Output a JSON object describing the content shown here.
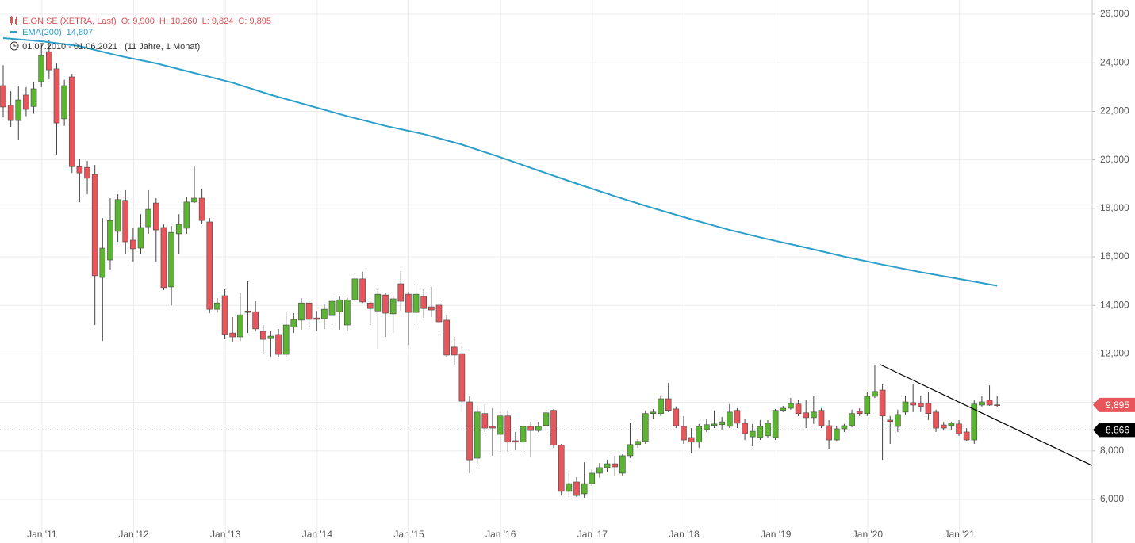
{
  "chart_data": {
    "type": "candlestick",
    "title": "E.ON SE (XETRA, Last)",
    "ohlc_labels": [
      "O: 9,900",
      "H: 10,260",
      "L: 9,824",
      "C: 9,895"
    ],
    "period": "01.07.2010 - 01.06.2021",
    "duration": "(11 Jahre, 1 Monat)",
    "up_color": "#5cb531",
    "down_color": "#e8555a",
    "categories": [
      null,
      null,
      null,
      null,
      null,
      null,
      "Jan '11",
      null,
      null,
      null,
      null,
      null,
      null,
      null,
      null,
      null,
      null,
      null,
      "Jan '12",
      null,
      null,
      null,
      null,
      null,
      null,
      null,
      null,
      null,
      null,
      null,
      "Jan '13",
      null,
      null,
      null,
      null,
      null,
      null,
      null,
      null,
      null,
      null,
      null,
      "Jan '14",
      null,
      null,
      null,
      null,
      null,
      null,
      null,
      null,
      null,
      null,
      null,
      "Jan '15",
      null,
      null,
      null,
      null,
      null,
      null,
      null,
      null,
      null,
      null,
      null,
      "Jan '16",
      null,
      null,
      null,
      null,
      null,
      null,
      null,
      null,
      null,
      null,
      null,
      "Jan '17",
      null,
      null,
      null,
      null,
      null,
      null,
      null,
      null,
      null,
      null,
      null,
      "Jan '18",
      null,
      null,
      null,
      null,
      null,
      null,
      null,
      null,
      null,
      null,
      null,
      "Jan '19",
      null,
      null,
      null,
      null,
      null,
      null,
      null,
      null,
      null,
      null,
      null,
      "Jan '20",
      null,
      null,
      null,
      null,
      null,
      null,
      null,
      null,
      null,
      null,
      null,
      "Jan '21",
      null,
      null,
      null,
      null
    ],
    "open": [
      23060,
      22250,
      21620,
      22670,
      22200,
      23220,
      24460,
      23750,
      21690,
      23420,
      19720,
      19690,
      19400,
      15150,
      15870,
      17050,
      18330,
      16690,
      16360,
      17240,
      18220,
      17210,
      14760,
      16950,
      17180,
      18260,
      18420,
      17440,
      13840,
      14400,
      12860,
      12700,
      13770,
      13740,
      12930,
      12630,
      12800,
      11980,
      13100,
      13390,
      14100,
      13480,
      13450,
      13580,
      13740,
      13190,
      14230,
      15090,
      14100,
      13770,
      14430,
      13650,
      14890,
      14460,
      13710,
      14370,
      13940,
      14010,
      13390,
      12280,
      12010,
      10020,
      7700,
      9540,
      9010,
      8680,
      9440,
      8420,
      8360,
      9010,
      8840,
      9050,
      9670,
      8230,
      6330,
      6720,
      6230,
      6650,
      7080,
      7310,
      7470,
      7080,
      7800,
      8260,
      8390,
      9540,
      9540,
      10150,
      9730,
      9010,
      8550,
      8360,
      8880,
      9050,
      9080,
      9010,
      9670,
      9140,
      8580,
      8550,
      8620,
      8550,
      9670,
      9760,
      9930,
      9570,
      9370,
      9670,
      9040,
      8450,
      8910,
      9040,
      9630,
      9540,
      10250,
      10510,
      9270,
      9010,
      9600,
      9990,
      9960,
      9960,
      9600,
      9070,
      9040,
      9110,
      8780,
      8450,
      9890,
      10090,
      9900
    ],
    "high": [
      23900,
      22830,
      23060,
      23000,
      23200,
      24790,
      24950,
      23970,
      23300,
      23550,
      20050,
      19950,
      19790,
      17600,
      18420,
      18580,
      18750,
      17180,
      17760,
      18750,
      18420,
      17340,
      17270,
      17760,
      18480,
      19730,
      18810,
      17600,
      14300,
      14660,
      13520,
      14500,
      14990,
      14170,
      13190,
      12930,
      13030,
      13740,
      13680,
      14300,
      14240,
      13770,
      14070,
      14330,
      14400,
      14330,
      15310,
      15380,
      14170,
      14660,
      14500,
      14400,
      15410,
      14560,
      14890,
      14660,
      14760,
      14170,
      13580,
      12700,
      12370,
      10250,
      9860,
      9930,
      9760,
      9600,
      9670,
      8780,
      9330,
      9200,
      9200,
      9700,
      9730,
      8290,
      7140,
      6920,
      7530,
      7240,
      7500,
      7630,
      7800,
      7860,
      9170,
      8490,
      9670,
      9730,
      10250,
      10800,
      9830,
      9430,
      8940,
      9110,
      9330,
      9670,
      9400,
      9930,
      9760,
      9330,
      9110,
      9270,
      9270,
      9730,
      9860,
      10180,
      10090,
      10090,
      10250,
      9760,
      9270,
      9010,
      9110,
      9700,
      9760,
      10410,
      11560,
      10740,
      9440,
      9700,
      10250,
      10740,
      10250,
      10410,
      9700,
      9200,
      9200,
      9270,
      8940,
      10090,
      10250,
      10700,
      10260
    ],
    "low": [
      21750,
      21360,
      20840,
      21800,
      21900,
      23000,
      23320,
      20220,
      21400,
      19460,
      18250,
      18580,
      13190,
      12540,
      15480,
      16620,
      16130,
      15800,
      16130,
      16950,
      15800,
      14630,
      14000,
      16130,
      16950,
      18220,
      17340,
      13680,
      13700,
      12600,
      12470,
      12530,
      12860,
      12930,
      11980,
      11880,
      11880,
      11880,
      12860,
      13000,
      13030,
      12930,
      13030,
      13190,
      13000,
      12930,
      14170,
      14100,
      13190,
      12210,
      12700,
      12860,
      13780,
      12370,
      13190,
      13480,
      13520,
      12960,
      11880,
      11560,
      9600,
      7080,
      7470,
      8780,
      7800,
      7960,
      7960,
      8030,
      7960,
      7760,
      8780,
      8780,
      8130,
      6160,
      6160,
      6100,
      6070,
      6560,
      6900,
      7140,
      6980,
      6980,
      7700,
      8130,
      8290,
      9310,
      9440,
      9600,
      8940,
      8290,
      7900,
      8130,
      8780,
      8940,
      8880,
      8940,
      8940,
      8450,
      8190,
      8450,
      8550,
      8450,
      9600,
      9700,
      9440,
      8940,
      9110,
      8940,
      8060,
      8420,
      8780,
      8970,
      9440,
      9440,
      10180,
      7630,
      8290,
      8780,
      9500,
      9600,
      9600,
      9270,
      8780,
      8840,
      8880,
      8620,
      8420,
      8290,
      9830,
      9860,
      9824
    ],
    "close": [
      22180,
      21620,
      22470,
      22080,
      22930,
      24300,
      23710,
      21520,
      23060,
      19720,
      19460,
      19240,
      15220,
      16360,
      17500,
      18360,
      16620,
      16330,
      17210,
      17960,
      17110,
      14730,
      17010,
      17340,
      18260,
      18420,
      17500,
      13840,
      14100,
      12800,
      12700,
      13610,
      13710,
      13030,
      12600,
      12730,
      11980,
      13190,
      13420,
      14100,
      13420,
      13420,
      13840,
      14170,
      14230,
      14230,
      15090,
      14140,
      13870,
      14460,
      13680,
      14270,
      14170,
      13710,
      14460,
      13870,
      13810,
      13320,
      11950,
      11950,
      10050,
      7630,
      9600,
      8940,
      8940,
      9440,
      8360,
      8360,
      9010,
      8840,
      9010,
      9570,
      8230,
      6330,
      6650,
      6160,
      6650,
      7080,
      7310,
      7470,
      7340,
      7800,
      8260,
      8390,
      9540,
      9600,
      10150,
      9670,
      9040,
      8450,
      8360,
      9010,
      9080,
      9110,
      9200,
      9600,
      9140,
      8710,
      8810,
      9010,
      9140,
      9670,
      9760,
      9960,
      9540,
      9370,
      9600,
      9040,
      8450,
      8910,
      9040,
      9540,
      9540,
      10250,
      10450,
      9440,
      9210,
      9500,
      10020,
      9890,
      9830,
      9540,
      8940,
      8940,
      9140,
      8710,
      8450,
      9930,
      10020,
      9890,
      9895
    ],
    "ema": {
      "name": "EMA(200)",
      "value_label": "14,807",
      "color": "#2a9fc9",
      "x": [
        0,
        5,
        10,
        15,
        20,
        25,
        30,
        35,
        40,
        45,
        50,
        55,
        60,
        65,
        70,
        75,
        80,
        85,
        90,
        95,
        100,
        105,
        110,
        115,
        120,
        125,
        130
      ],
      "values": [
        25020,
        24890,
        24690,
        24300,
        23980,
        23580,
        23180,
        22680,
        22240,
        21800,
        21400,
        21060,
        20630,
        20110,
        19560,
        19020,
        18500,
        18010,
        17550,
        17110,
        16730,
        16380,
        16010,
        15680,
        15370,
        15090,
        14807
      ]
    },
    "trendline": {
      "color": "#000000",
      "x": [
        114.7,
        142.4
      ],
      "values": [
        11560,
        7400
      ]
    },
    "price_tags": [
      {
        "value": 9895,
        "label": "9,895",
        "color": "#e8555a"
      },
      {
        "value": 8866,
        "label": "8,866",
        "color": "#000000"
      }
    ],
    "ylim": [
      5020,
      26590
    ],
    "yticks": [
      {
        "value": 6000,
        "label": "6,000"
      },
      {
        "value": 8000,
        "label": "8,000"
      },
      {
        "value": 10000,
        "label": "10,000"
      },
      {
        "value": 12000,
        "label": "12,000"
      },
      {
        "value": 14000,
        "label": "14,000"
      },
      {
        "value": 16000,
        "label": "16,000"
      },
      {
        "value": 18000,
        "label": "18,000"
      },
      {
        "value": 20000,
        "label": "20,000"
      },
      {
        "value": 22000,
        "label": "22,000"
      },
      {
        "value": 24000,
        "label": "24,000"
      },
      {
        "value": 26000,
        "label": "26,000"
      }
    ],
    "grid": true
  }
}
